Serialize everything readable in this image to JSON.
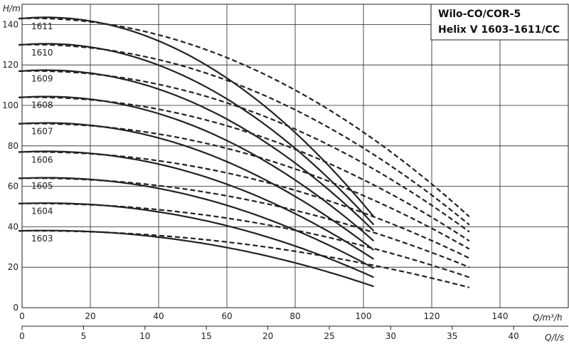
{
  "chart_data": {
    "type": "line",
    "title": [
      "Wilo-CO/COR-5",
      "Helix V 1603–1611/CC"
    ],
    "ylabel": "H/m",
    "xlabel": "Q/m³/h",
    "x2label": "Q/l/s",
    "xlim": [
      0,
      160
    ],
    "ylim": [
      0,
      150
    ],
    "x_ticks": [
      0,
      20,
      40,
      60,
      80,
      100,
      120,
      140
    ],
    "y_ticks": [
      0,
      20,
      40,
      60,
      80,
      100,
      120,
      140
    ],
    "x2_ticks": [
      0,
      5,
      10,
      15,
      20,
      25,
      30,
      35,
      40
    ],
    "grid": true,
    "series": [
      {
        "name": "1603",
        "shutoff": 38,
        "solid_end": [
          103,
          10.5
        ],
        "dashed_end": [
          131,
          10
        ]
      },
      {
        "name": "1604",
        "shutoff": 51.5,
        "solid_end": [
          103,
          15
        ],
        "dashed_end": [
          131,
          15
        ]
      },
      {
        "name": "1605",
        "shutoff": 64,
        "solid_end": [
          103,
          19.5
        ],
        "dashed_end": [
          131,
          20
        ]
      },
      {
        "name": "1606",
        "shutoff": 77,
        "solid_end": [
          103,
          24
        ],
        "dashed_end": [
          131,
          24.5
        ]
      },
      {
        "name": "1607",
        "shutoff": 91,
        "solid_end": [
          103,
          28.5
        ],
        "dashed_end": [
          131,
          29
        ]
      },
      {
        "name": "1608",
        "shutoff": 104,
        "solid_end": [
          103,
          33
        ],
        "dashed_end": [
          131,
          33
        ]
      },
      {
        "name": "1609",
        "shutoff": 117,
        "solid_end": [
          103,
          38
        ],
        "dashed_end": [
          131,
          37.5
        ]
      },
      {
        "name": "1610",
        "shutoff": 130,
        "solid_end": [
          103,
          41
        ],
        "dashed_end": [
          131,
          41
        ]
      },
      {
        "name": "1611",
        "shutoff": 143,
        "solid_end": [
          103,
          45
        ],
        "dashed_end": [
          131,
          45
        ]
      }
    ]
  }
}
